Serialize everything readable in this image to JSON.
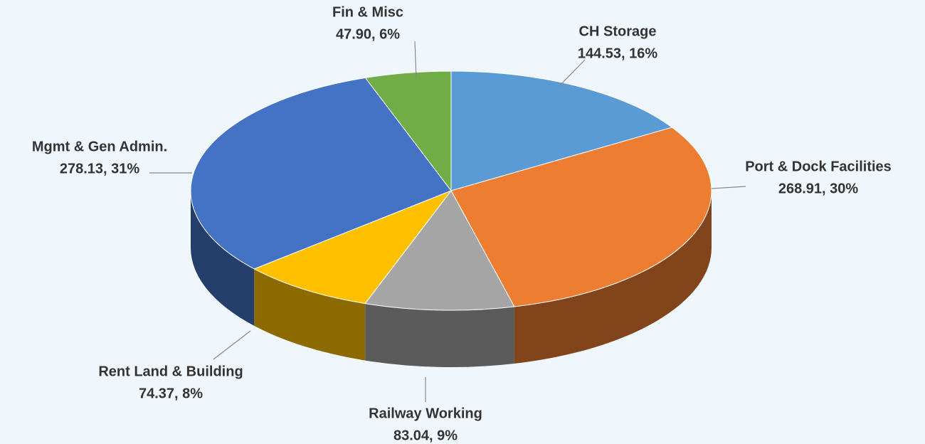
{
  "chart_data": {
    "type": "pie",
    "three_d": true,
    "categories": [
      "CH Storage",
      "Port & Dock Facilities",
      "Railway Working",
      "Rent Land & Building",
      "Mgmt & Gen Admin.",
      "Fin & Misc"
    ],
    "values": [
      144.53,
      268.91,
      83.04,
      74.37,
      278.13,
      47.9
    ],
    "value_labels": [
      "144.53, 16%",
      "268.91, 30%",
      "83.04, 9%",
      "74.37, 8%",
      "278.13, 31%",
      "47.90, 6%"
    ],
    "colors": [
      "#5b9bd5",
      "#ed7d31",
      "#a5a5a5",
      "#ffc000",
      "#4472c4",
      "#70ad47"
    ]
  }
}
